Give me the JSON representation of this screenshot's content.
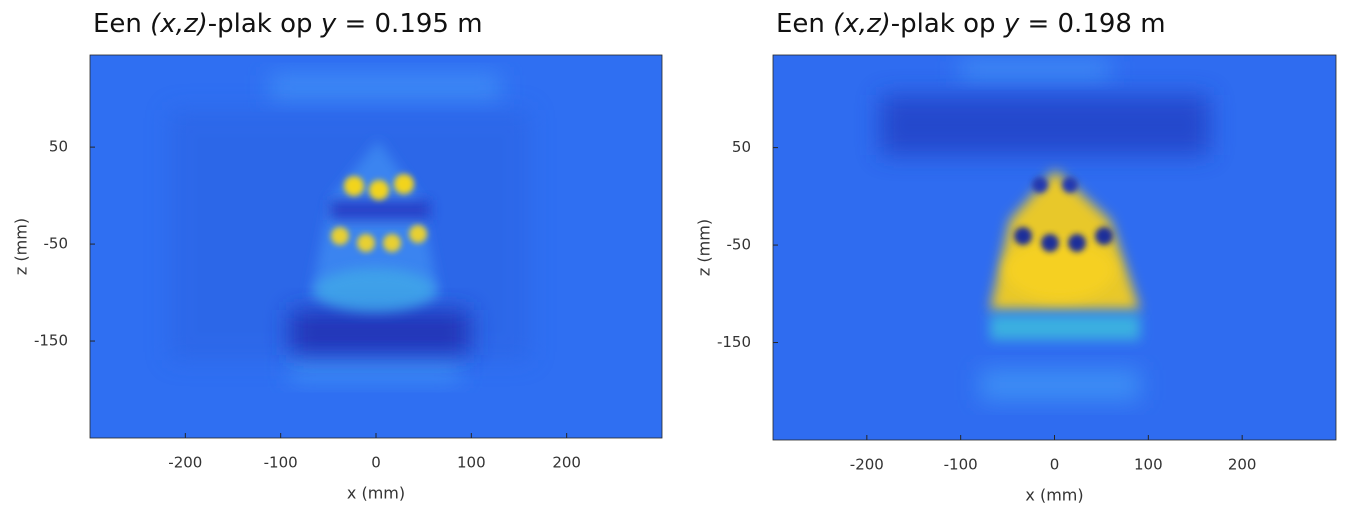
{
  "chart_data": [
    {
      "type": "heatmap",
      "title": [
        {
          "text": "Een ",
          "italic": false
        },
        {
          "text": "(x,z)",
          "italic": true
        },
        {
          "text": "-plak op ",
          "italic": false
        },
        {
          "text": "y",
          "italic": true
        },
        {
          "text": " = 0.195 m",
          "italic": false
        }
      ],
      "xlabel": "x (mm)",
      "ylabel": "z (mm)",
      "xlim": [
        -300,
        300
      ],
      "ylim": [
        -250,
        145
      ],
      "xticks": [
        -200,
        -100,
        0,
        100,
        200
      ],
      "yticks": [
        50,
        -50,
        -150
      ]
    },
    {
      "type": "heatmap",
      "title": [
        {
          "text": "Een ",
          "italic": false
        },
        {
          "text": "(x,z)",
          "italic": true
        },
        {
          "text": "-plak op ",
          "italic": false
        },
        {
          "text": "y",
          "italic": true
        },
        {
          "text": " = 0.198 m",
          "italic": false
        }
      ],
      "xlabel": "x (mm)",
      "ylabel": "z (mm)",
      "xlim": [
        -300,
        300
      ],
      "ylim": [
        -250,
        145
      ],
      "xticks": [
        -200,
        -100,
        0,
        100,
        200
      ],
      "yticks": [
        50,
        -50,
        -150
      ]
    }
  ]
}
